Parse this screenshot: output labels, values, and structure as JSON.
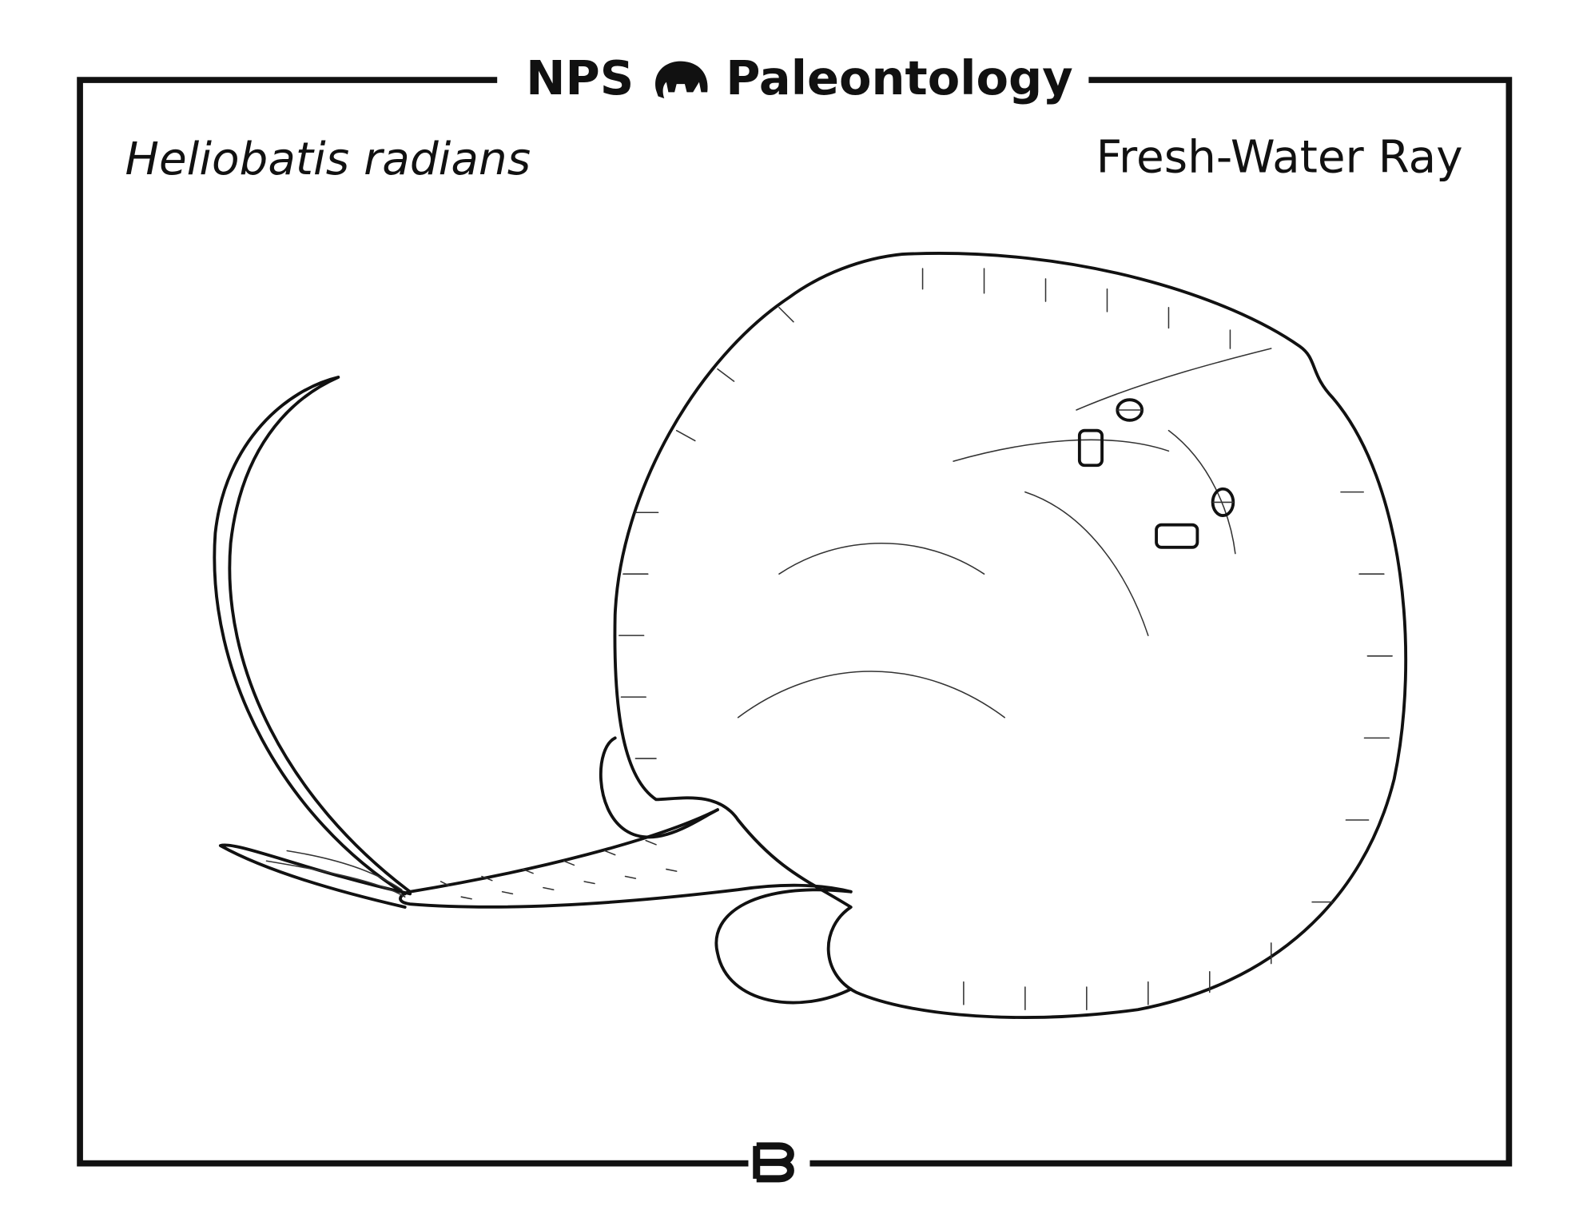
{
  "header": {
    "brand": "NPS",
    "title": "Paleontology"
  },
  "scientific_name": "Heliobatis radians",
  "common_name": "Fresh-Water Ray"
}
